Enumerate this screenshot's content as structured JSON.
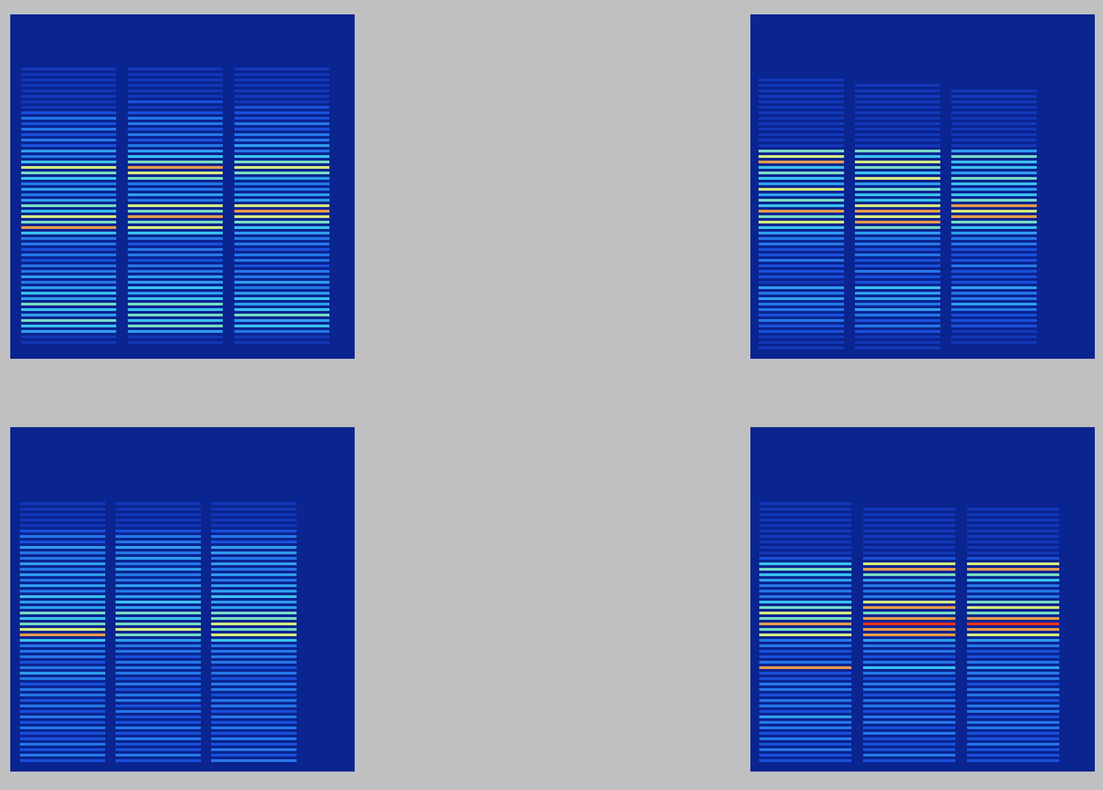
{
  "chart_data": [
    {
      "type": "heatmap",
      "cells": [
        [
          0,
          0,
          0,
          0,
          0,
          0,
          0,
          0,
          1,
          1,
          1,
          1,
          1,
          1,
          1,
          1,
          2,
          3,
          2,
          3,
          2,
          3,
          2,
          4,
          3,
          5,
          7,
          6,
          5,
          3,
          4,
          3,
          4,
          6,
          5,
          7,
          6,
          8,
          5,
          3,
          3,
          2,
          3,
          2,
          3,
          3,
          4,
          3,
          4,
          5,
          4,
          6,
          5,
          4,
          6,
          5,
          4,
          1,
          1,
          0
        ],
        [
          0,
          0,
          0,
          0,
          0,
          0,
          0,
          0,
          1,
          1,
          1,
          1,
          1,
          1,
          2,
          1,
          2,
          3,
          3,
          2,
          3,
          2,
          3,
          4,
          5,
          6,
          8,
          7,
          6,
          3,
          3,
          4,
          3,
          7,
          6,
          8,
          6,
          7,
          5,
          3,
          2,
          3,
          3,
          2,
          3,
          3,
          4,
          4,
          5,
          4,
          5,
          6,
          5,
          6,
          5,
          6,
          4,
          1,
          1,
          0
        ],
        [
          0,
          0,
          0,
          0,
          0,
          0,
          0,
          0,
          1,
          1,
          1,
          1,
          1,
          1,
          1,
          2,
          2,
          2,
          3,
          2,
          3,
          3,
          4,
          3,
          5,
          6,
          7,
          6,
          4,
          3,
          3,
          4,
          4,
          7,
          8,
          7,
          6,
          5,
          4,
          3,
          3,
          2,
          3,
          3,
          2,
          3,
          3,
          4,
          3,
          4,
          5,
          4,
          5,
          6,
          4,
          5,
          3,
          1,
          1,
          0
        ]
      ]
    },
    {
      "type": "heatmap",
      "cells": [
        [
          0,
          0,
          0,
          0,
          0,
          0,
          0,
          0,
          0,
          0,
          1,
          1,
          1,
          1,
          1,
          1,
          1,
          1,
          1,
          1,
          1,
          1,
          1,
          6,
          7,
          8,
          5,
          6,
          5,
          4,
          7,
          4,
          6,
          5,
          8,
          6,
          7,
          5,
          4,
          3,
          3,
          2,
          2,
          3,
          2,
          2,
          2,
          1,
          4,
          3,
          4,
          3,
          3,
          2,
          3,
          2,
          2,
          1,
          1,
          1
        ],
        [
          0,
          0,
          0,
          0,
          0,
          0,
          0,
          0,
          0,
          0,
          0,
          1,
          1,
          1,
          1,
          1,
          1,
          1,
          1,
          1,
          1,
          1,
          1,
          6,
          5,
          7,
          6,
          5,
          7,
          4,
          6,
          5,
          5,
          7,
          8,
          7,
          8,
          6,
          4,
          3,
          3,
          2,
          3,
          2,
          2,
          3,
          2,
          2,
          5,
          4,
          4,
          3,
          4,
          3,
          2,
          3,
          2,
          1,
          1,
          1
        ],
        [
          0,
          0,
          0,
          0,
          0,
          0,
          0,
          0,
          0,
          0,
          0,
          0,
          1,
          1,
          1,
          1,
          1,
          1,
          1,
          1,
          1,
          1,
          1,
          4,
          6,
          5,
          5,
          4,
          6,
          5,
          4,
          5,
          6,
          8,
          7,
          8,
          6,
          5,
          4,
          3,
          3,
          2,
          2,
          2,
          3,
          2,
          2,
          2,
          4,
          3,
          3,
          4,
          3,
          2,
          2,
          2,
          1,
          1,
          1,
          0
        ]
      ]
    },
    {
      "type": "heatmap",
      "cells": [
        [
          0,
          0,
          0,
          0,
          0,
          0,
          0,
          0,
          0,
          0,
          0,
          0,
          1,
          1,
          1,
          1,
          1,
          2,
          3,
          2,
          4,
          3,
          3,
          4,
          3,
          4,
          3,
          4,
          3,
          5,
          4,
          4,
          6,
          5,
          6,
          7,
          8,
          5,
          3,
          3,
          3,
          2,
          3,
          4,
          3,
          2,
          3,
          3,
          2,
          3,
          2,
          3,
          2,
          3,
          2,
          2,
          3,
          2,
          3,
          2
        ],
        [
          0,
          0,
          0,
          0,
          0,
          0,
          0,
          0,
          0,
          0,
          0,
          0,
          1,
          1,
          1,
          1,
          1,
          2,
          3,
          3,
          4,
          3,
          4,
          3,
          4,
          3,
          3,
          4,
          3,
          4,
          5,
          4,
          6,
          5,
          6,
          7,
          6,
          4,
          3,
          3,
          2,
          3,
          3,
          3,
          2,
          3,
          2,
          3,
          3,
          2,
          3,
          2,
          2,
          3,
          2,
          3,
          2,
          2,
          3,
          2
        ],
        [
          0,
          0,
          0,
          0,
          0,
          0,
          0,
          0,
          0,
          0,
          0,
          0,
          1,
          1,
          1,
          1,
          1,
          2,
          3,
          2,
          4,
          4,
          3,
          4,
          3,
          4,
          3,
          4,
          4,
          5,
          4,
          4,
          6,
          6,
          7,
          6,
          7,
          5,
          3,
          3,
          3,
          3,
          2,
          3,
          2,
          3,
          3,
          2,
          3,
          3,
          2,
          3,
          2,
          3,
          2,
          3,
          2,
          3,
          2,
          3
        ]
      ]
    },
    {
      "type": "heatmap",
      "cells": [
        [
          0,
          0,
          0,
          0,
          0,
          0,
          0,
          0,
          0,
          0,
          0,
          0,
          1,
          1,
          1,
          1,
          1,
          1,
          1,
          1,
          1,
          1,
          2,
          5,
          6,
          5,
          4,
          3,
          3,
          3,
          5,
          6,
          7,
          6,
          8,
          6,
          7,
          3,
          3,
          2,
          2,
          3,
          8,
          2,
          2,
          3,
          3,
          2,
          3,
          3,
          2,
          4,
          3,
          3,
          2,
          3,
          2,
          3,
          2,
          2
        ],
        [
          0,
          0,
          0,
          0,
          0,
          0,
          0,
          0,
          0,
          0,
          0,
          0,
          0,
          1,
          1,
          1,
          1,
          1,
          1,
          1,
          1,
          1,
          2,
          7,
          8,
          6,
          4,
          3,
          3,
          3,
          7,
          8,
          6,
          8,
          9,
          8,
          8,
          4,
          3,
          3,
          2,
          3,
          5,
          3,
          2,
          3,
          3,
          2,
          3,
          3,
          2,
          3,
          3,
          2,
          3,
          2,
          2,
          2,
          3,
          2
        ],
        [
          0,
          0,
          0,
          0,
          0,
          0,
          0,
          0,
          0,
          0,
          0,
          0,
          0,
          1,
          1,
          1,
          1,
          1,
          1,
          1,
          1,
          1,
          2,
          7,
          8,
          6,
          5,
          3,
          3,
          3,
          6,
          7,
          6,
          8,
          9,
          8,
          7,
          4,
          3,
          2,
          2,
          3,
          4,
          3,
          3,
          2,
          3,
          3,
          2,
          3,
          3,
          2,
          3,
          3,
          2,
          2,
          3,
          2,
          2,
          2
        ]
      ]
    }
  ]
}
